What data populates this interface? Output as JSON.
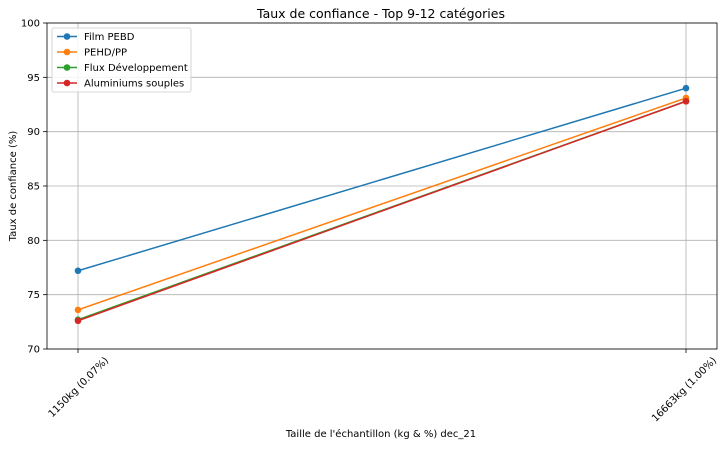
{
  "chart_data": {
    "type": "line",
    "title": "Taux de confiance - Top 9-12 catégories",
    "xlabel": "Taille de l'échantillon (kg & %) dec_21",
    "ylabel": "Taux de confiance (%)",
    "categories": [
      "1150kg (0.07%)",
      "16663kg (1.00%)"
    ],
    "ylim": [
      70,
      100
    ],
    "yticks": [
      "70",
      "75",
      "80",
      "85",
      "90",
      "95",
      "100"
    ],
    "grid": true,
    "legend_position": "top-left",
    "series": [
      {
        "name": "Film PEBD",
        "color": "#1f77b4",
        "values": [
          77.2,
          94.0
        ]
      },
      {
        "name": "PEHD/PP",
        "color": "#ff7f0e",
        "values": [
          73.6,
          93.1
        ]
      },
      {
        "name": "Flux Développement",
        "color": "#2ca02c",
        "values": [
          72.7,
          92.8
        ]
      },
      {
        "name": "Aluminiums souples",
        "color": "#d62728",
        "values": [
          72.6,
          92.8
        ]
      }
    ]
  }
}
